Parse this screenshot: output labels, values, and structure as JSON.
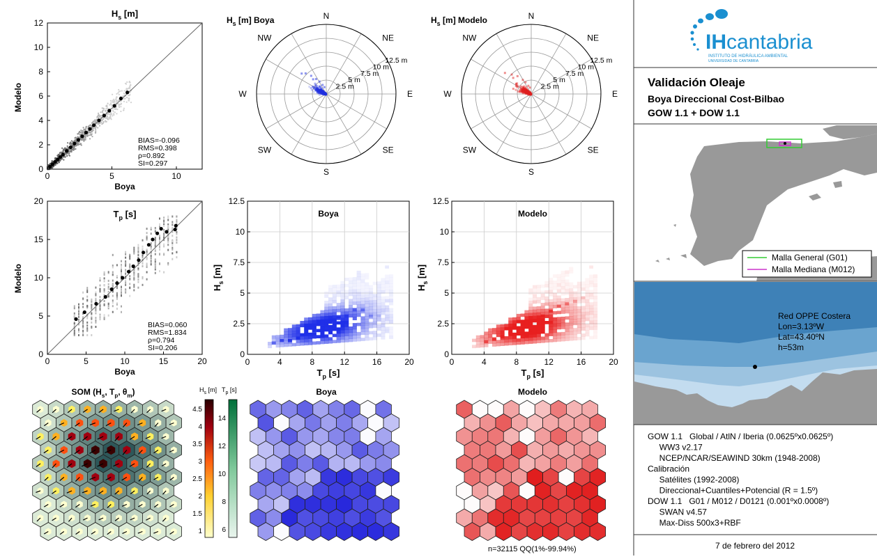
{
  "hs_scatter": {
    "title": "H",
    "title_sub": "s",
    "title_unit": " [m]",
    "xlabel": "Boya",
    "ylabel": "Modelo",
    "xticks": [
      "0",
      "5",
      "10"
    ],
    "yticks": [
      "0",
      "2",
      "4",
      "6",
      "8",
      "10",
      "12"
    ],
    "stats": [
      "BIAS=-0.096",
      "RMS=0.398",
      "ρ=0.892",
      "SI=0.297"
    ]
  },
  "tp_scatter": {
    "title": "T",
    "title_sub": "p",
    "title_unit": " [s]",
    "xlabel": "Boya",
    "ylabel": "Modelo",
    "xticks": [
      "0",
      "5",
      "10",
      "15",
      "20"
    ],
    "yticks": [
      "0",
      "5",
      "10",
      "15",
      "20"
    ],
    "stats": [
      "BIAS=0.060",
      "RMS=1.834",
      "ρ=0.794",
      "SI=0.206"
    ]
  },
  "rose_boya": {
    "title": "H",
    "title_sub": "s",
    "title_rest": " [m] Boya"
  },
  "rose_modelo": {
    "title": "H",
    "title_sub": "s",
    "title_rest": " [m] Modelo"
  },
  "rose_dirs": {
    "N": "N",
    "NE": "NE",
    "E": "E",
    "SE": "SE",
    "S": "S",
    "SW": "SW",
    "W": "W",
    "NW": "NW"
  },
  "rose_rings": [
    "2.5 m",
    "5 m",
    "7.5 m",
    "10 m",
    "12.5 m"
  ],
  "dens_boya": {
    "title": "Boya"
  },
  "dens_modelo": {
    "title": "Modelo"
  },
  "dens_axes": {
    "xlabel_main": "T",
    "xlabel_sub": "p",
    "xlabel_unit": " [s]",
    "ylabel_main": "H",
    "ylabel_sub": "s",
    "ylabel_unit": " [m]",
    "xticks": [
      "0",
      "4",
      "8",
      "12",
      "16",
      "20"
    ],
    "yticks": [
      "0",
      "2.5",
      "5",
      "7.5",
      "10",
      "12.5"
    ]
  },
  "som": {
    "title": "SOM (H",
    "t_s": "s",
    "t_mid": ", T",
    "t_p": "p",
    "t_mid2": ", θ",
    "t_m": "m",
    "t_end": ")",
    "boya_title": "Boya",
    "modelo_title": "Modelo",
    "cb_hs_label": "H",
    "cb_hs_sub": "s",
    "cb_hs_unit": " [m]",
    "cb_tp_label": "T",
    "cb_tp_sub": "p",
    "cb_tp_unit": " [s]",
    "hs_ticks": [
      "1",
      "1.5",
      "2",
      "2.5",
      "3",
      "3.5",
      "4",
      "4.5"
    ],
    "tp_ticks": [
      "6",
      "8",
      "10",
      "12",
      "14"
    ]
  },
  "footer_n": "n=32115 QQ(1%-99.94%)",
  "panel": {
    "logo_main": "IHcantabria",
    "logo_ih": "IH",
    "logo_word": "cantabria",
    "logo_sub1": "INSTITUTO DE HIDRÁULICA AMBIENTAL",
    "logo_sub2": "UNIVERSIDAD DE CANTABRIA",
    "title": "Validación Oleaje",
    "sub1": "Boya Direccional Cost-Bilbao",
    "sub2": "GOW 1.1  +  DOW 1.1",
    "legend_g": "Malla General (G01)",
    "legend_m": "Malla Mediana (M012)",
    "station": "Red OPPE Costera",
    "lon": "Lon=3.13ºW",
    "lat": "Lat=43.40ºN",
    "depth": "h=53m",
    "info": [
      "GOW 1.1   Global / AtlN / Iberia (0.0625ºx0.0625º)",
      "     WW3 v2.17",
      "     NCEP/NCAR/SEAWIND 30km (1948-2008)",
      "Calibración",
      "     Satélites (1992-2008)",
      "     Direccional+Cuantiles+Potencial (R = 1.5º)",
      "DOW 1.1   G01 / M012 / D0121 (0.001ºx0.0008º)",
      "     SWAN v4.57",
      "     Max-Diss 500x3+RBF"
    ],
    "date": "7 de febrero del 2012"
  },
  "colors": {
    "blue": "#2030e0",
    "red": "#e02020",
    "green": "#2a9a55",
    "sea": "#7fb3d6",
    "land": "#999999",
    "malla_g": "#33cc33",
    "malla_m": "#cc33cc"
  },
  "chart_data": [
    {
      "type": "scatter",
      "title": "H_s [m]",
      "xlabel": "Boya",
      "ylabel": "Modelo",
      "xlim": [
        0,
        12
      ],
      "ylim": [
        0,
        12
      ],
      "quantiles": [
        [
          0.2,
          0.2
        ],
        [
          0.4,
          0.4
        ],
        [
          0.6,
          0.6
        ],
        [
          0.8,
          0.8
        ],
        [
          1.0,
          1.0
        ],
        [
          1.2,
          1.2
        ],
        [
          1.5,
          1.5
        ],
        [
          1.8,
          1.8
        ],
        [
          2.1,
          2.1
        ],
        [
          2.4,
          2.4
        ],
        [
          2.7,
          2.7
        ],
        [
          3.0,
          3.0
        ],
        [
          3.3,
          3.3
        ],
        [
          3.6,
          3.6
        ],
        [
          4.0,
          4.0
        ],
        [
          4.4,
          4.4
        ],
        [
          4.8,
          4.8
        ],
        [
          5.2,
          5.2
        ],
        [
          5.7,
          5.8
        ],
        [
          6.2,
          6.3
        ]
      ],
      "annotations": [
        "BIAS=-0.096",
        "RMS=0.398",
        "ρ=0.892",
        "SI=0.297"
      ]
    },
    {
      "type": "scatter",
      "title": "T_p [s]",
      "xlabel": "Boya",
      "ylabel": "Modelo",
      "xlim": [
        0,
        20
      ],
      "ylim": [
        0,
        20
      ],
      "quantiles": [
        [
          3.7,
          4.6
        ],
        [
          4.8,
          5.5
        ],
        [
          6.3,
          6.6
        ],
        [
          7.5,
          7.5
        ],
        [
          8.3,
          8.5
        ],
        [
          9.0,
          9.3
        ],
        [
          9.7,
          10.0
        ],
        [
          10.5,
          10.8
        ],
        [
          11.1,
          11.5
        ],
        [
          11.8,
          12.3
        ],
        [
          12.4,
          13.3
        ],
        [
          13.1,
          14.3
        ],
        [
          13.6,
          15.0
        ],
        [
          14.2,
          15.8
        ],
        [
          14.7,
          16.4
        ],
        [
          15.4,
          16.0
        ],
        [
          16.5,
          16.3
        ],
        [
          16.6,
          16.8
        ]
      ],
      "annotations": [
        "BIAS=0.060",
        "RMS=1.834",
        "ρ=0.794",
        "SI=0.206"
      ]
    },
    {
      "type": "scatter",
      "title": "H_s [m] Boya",
      "rose": true,
      "rmax": 12.5,
      "points": [
        [
          315,
          5.5
        ],
        [
          320,
          4.5
        ],
        [
          325,
          3.5
        ],
        [
          330,
          2.8
        ],
        [
          335,
          2.0
        ],
        [
          310,
          6.0
        ],
        [
          318,
          3.8
        ],
        [
          300,
          3.0
        ],
        [
          340,
          1.5
        ]
      ]
    },
    {
      "type": "scatter",
      "title": "H_s [m] Modelo",
      "rose": true,
      "rmax": 12.5,
      "points": [
        [
          315,
          5.2
        ],
        [
          322,
          4.3
        ],
        [
          328,
          3.2
        ],
        [
          332,
          2.6
        ],
        [
          337,
          1.8
        ],
        [
          309,
          6.3
        ],
        [
          312,
          4.6
        ],
        [
          305,
          3.5
        ],
        [
          342,
          1.4
        ]
      ]
    },
    {
      "type": "heatmap",
      "title": "Boya",
      "xlabel": "T_p [s]",
      "ylabel": "H_s [m]",
      "xlim": [
        0,
        20
      ],
      "ylim": [
        0,
        12.5
      ],
      "cells": [
        [
          3,
          0.8,
          0.6
        ],
        [
          4,
          1.0,
          0.8
        ],
        [
          5,
          1.0,
          0.9
        ],
        [
          6,
          1.2,
          1.0
        ],
        [
          7,
          1.5,
          1.0
        ],
        [
          8,
          1.8,
          1.0
        ],
        [
          9,
          2.0,
          1.0
        ],
        [
          10,
          2.5,
          1.0
        ],
        [
          11,
          2.8,
          0.9
        ],
        [
          12,
          3.0,
          0.8
        ],
        [
          13,
          3.5,
          0.6
        ],
        [
          14,
          3.5,
          0.5
        ],
        [
          15,
          3.0,
          0.3
        ],
        [
          16,
          3.0,
          0.2
        ],
        [
          17,
          7.0,
          0.1
        ]
      ]
    },
    {
      "type": "heatmap",
      "title": "Modelo",
      "xlabel": "T_p [s]",
      "ylabel": "H_s [m]",
      "xlim": [
        0,
        20
      ],
      "ylim": [
        0,
        12.5
      ],
      "cells": [
        [
          4,
          0.9,
          0.7
        ],
        [
          5,
          1.1,
          0.8
        ],
        [
          6,
          1.3,
          0.9
        ],
        [
          7,
          1.6,
          1.0
        ],
        [
          8,
          1.9,
          1.0
        ],
        [
          9,
          2.2,
          1.0
        ],
        [
          10,
          2.6,
          1.0
        ],
        [
          11,
          3.0,
          0.9
        ],
        [
          12,
          3.4,
          0.8
        ],
        [
          13,
          3.8,
          0.6
        ],
        [
          14,
          4.0,
          0.5
        ],
        [
          15,
          4.2,
          0.3
        ],
        [
          16,
          4.5,
          0.2
        ],
        [
          17,
          7.0,
          0.1
        ]
      ]
    }
  ]
}
